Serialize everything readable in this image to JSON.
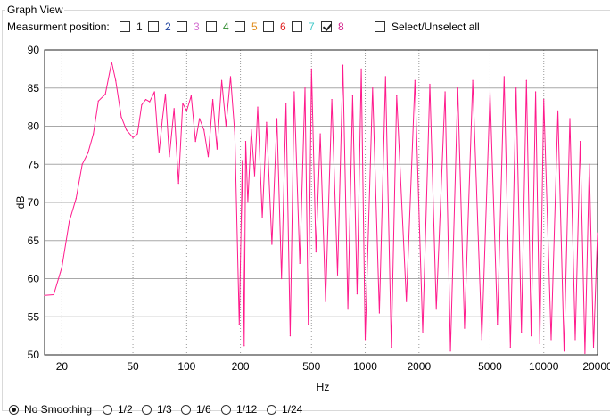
{
  "group": {
    "title": "Graph View"
  },
  "positions": {
    "label": "Measurment position:",
    "items": [
      {
        "label": "1",
        "color": "#1a1a1a",
        "checked": false
      },
      {
        "label": "2",
        "color": "#1a3f9c",
        "checked": false
      },
      {
        "label": "3",
        "color": "#d36fd0",
        "checked": false
      },
      {
        "label": "4",
        "color": "#2d8a2d",
        "checked": false
      },
      {
        "label": "5",
        "color": "#e08b1a",
        "checked": false
      },
      {
        "label": "6",
        "color": "#e02020",
        "checked": false
      },
      {
        "label": "7",
        "color": "#3fc8c8",
        "checked": false
      },
      {
        "label": "8",
        "color": "#d4208a",
        "checked": true
      }
    ],
    "select_all_label": "Select/Unselect all",
    "select_all_checked": false
  },
  "smoothing": {
    "options": [
      "No Smoothing",
      "1/2",
      "1/3",
      "1/6",
      "1/12",
      "1/24"
    ],
    "selected": 0
  },
  "chart_data": {
    "type": "line",
    "xlabel": "Hz",
    "ylabel": "dB",
    "xscale": "log",
    "xlim": [
      16,
      20000
    ],
    "ylim": [
      50,
      90
    ],
    "xticks": [
      20,
      50,
      100,
      200,
      500,
      1000,
      2000,
      5000,
      10000,
      20000
    ],
    "yticks": [
      50,
      55,
      60,
      65,
      70,
      75,
      80,
      85,
      90
    ],
    "series": [
      {
        "color": "#ff1a8c",
        "x": [
          16,
          18,
          20,
          22,
          24,
          26,
          28,
          30,
          32,
          35,
          38,
          40,
          43,
          46,
          50,
          53,
          56,
          59,
          62,
          66,
          70,
          73,
          76,
          80,
          85,
          90,
          95,
          100,
          106,
          112,
          118,
          125,
          132,
          140,
          148,
          157,
          166,
          176,
          186,
          197,
          205,
          210,
          214,
          220,
          230,
          240,
          250,
          265,
          280,
          300,
          320,
          340,
          360,
          380,
          400,
          430,
          460,
          480,
          500,
          530,
          560,
          600,
          650,
          700,
          750,
          800,
          850,
          900,
          950,
          1000,
          1100,
          1200,
          1300,
          1400,
          1500,
          1700,
          1900,
          2100,
          2300,
          2500,
          2800,
          3000,
          3300,
          3600,
          4000,
          4500,
          5000,
          5500,
          6000,
          6500,
          7000,
          7500,
          8000,
          8500,
          9000,
          9500,
          10000,
          11000,
          12000,
          13000,
          14000,
          15000,
          16000,
          17000,
          18000,
          19000,
          20000
        ],
        "y": [
          57.8,
          57.9,
          61.5,
          67.5,
          70.5,
          75.0,
          76.5,
          79.0,
          83.3,
          84.2,
          88.4,
          86.0,
          81.2,
          79.5,
          78.5,
          79.0,
          82.8,
          83.5,
          83.2,
          84.5,
          76.5,
          80.8,
          84.2,
          76.0,
          82.3,
          72.5,
          83.0,
          82.0,
          84.0,
          78.0,
          81.0,
          79.5,
          76.0,
          83.5,
          77.0,
          86.0,
          80.0,
          86.5,
          79.0,
          54.0,
          75.5,
          51.2,
          78.0,
          70.0,
          79.5,
          73.5,
          82.5,
          68.0,
          80.5,
          64.5,
          81.0,
          60.0,
          83.0,
          52.5,
          84.5,
          62.0,
          85.0,
          54.0,
          87.5,
          63.5,
          79.0,
          57.0,
          83.5,
          60.5,
          88.0,
          56.0,
          84.0,
          58.0,
          87.5,
          52.0,
          85.0,
          55.5,
          86.5,
          51.0,
          84.0,
          57.0,
          86.0,
          53.0,
          85.5,
          56.0,
          84.5,
          50.5,
          85.0,
          53.5,
          86.0,
          52.0,
          84.5,
          54.0,
          86.5,
          51.0,
          85.0,
          53.0,
          86.0,
          52.5,
          84.5,
          51.5,
          83.5,
          52.0,
          82.0,
          50.5,
          81.0,
          52.0,
          78.0,
          50.2,
          75.0,
          51.0,
          66.0
        ]
      }
    ]
  }
}
